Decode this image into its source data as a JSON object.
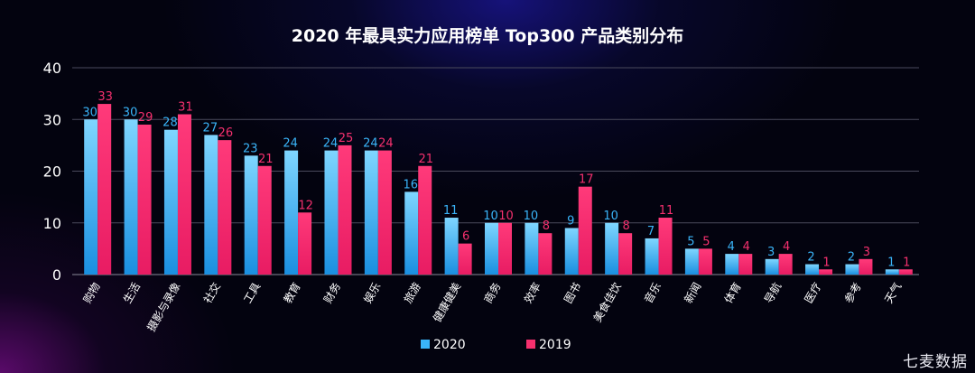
{
  "chart_data": {
    "type": "bar",
    "title": "2020 年最具实力应用榜单 Top300 产品类别分布",
    "categories": [
      "购物",
      "生活",
      "摄影与录像",
      "社交",
      "工具",
      "教育",
      "财务",
      "娱乐",
      "旅游",
      "健康健美",
      "商务",
      "效率",
      "图书",
      "美食佳饮",
      "音乐",
      "新闻",
      "体育",
      "导航",
      "医疗",
      "参考",
      "天气"
    ],
    "series": [
      {
        "name": "2020",
        "color": "#3ab4f8",
        "values": [
          30,
          30,
          28,
          27,
          23,
          24,
          24,
          24,
          16,
          11,
          10,
          10,
          9,
          10,
          7,
          5,
          4,
          3,
          2,
          2,
          1
        ]
      },
      {
        "name": "2019",
        "color": "#f5306e",
        "values": [
          33,
          29,
          31,
          26,
          21,
          12,
          25,
          24,
          21,
          6,
          10,
          8,
          17,
          8,
          11,
          5,
          4,
          4,
          1,
          3,
          1
        ]
      }
    ],
    "yticks": [
      0,
      10,
      20,
      30,
      40
    ],
    "ylim": [
      0,
      40
    ],
    "grid": true,
    "legend_position": "bottom-center"
  },
  "watermark": "七麦数据"
}
